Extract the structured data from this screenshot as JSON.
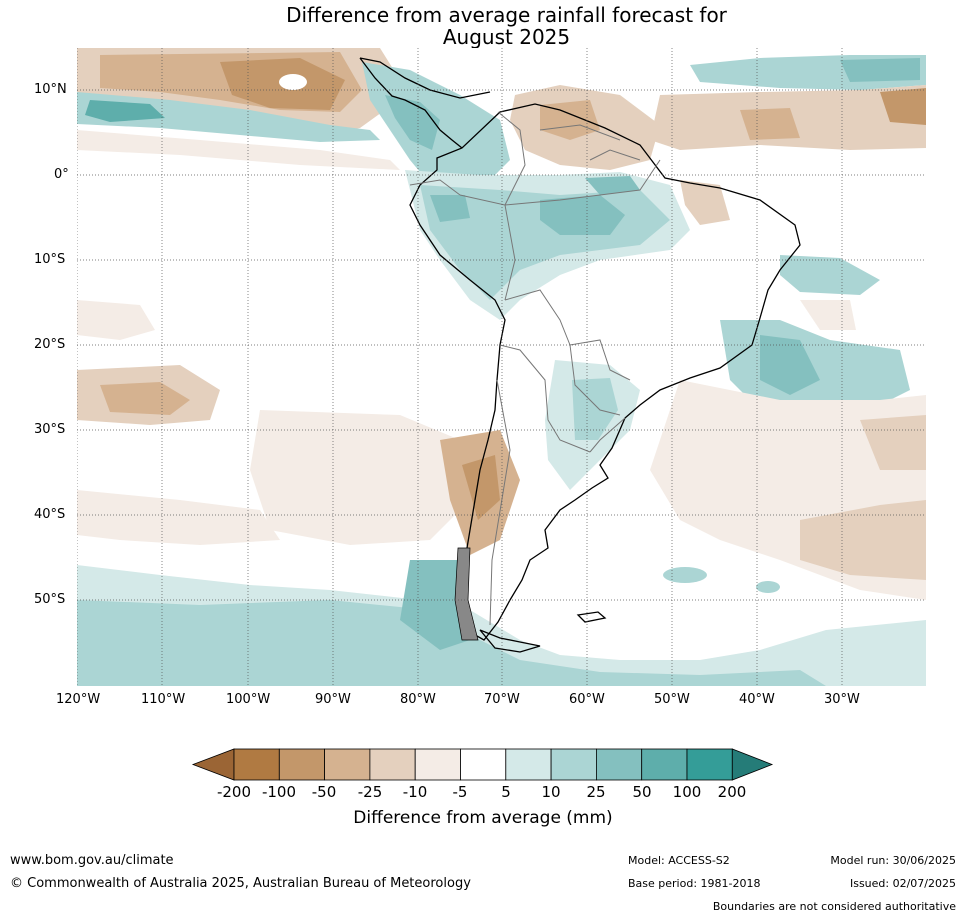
{
  "title": {
    "line1": "Difference from average rainfall forecast for",
    "line2": "August 2025"
  },
  "latitude_labels": [
    "10°N",
    "0°",
    "10°S",
    "20°S",
    "30°S",
    "40°S",
    "50°S"
  ],
  "longitude_labels": [
    "120°W",
    "110°W",
    "100°W",
    "90°W",
    "80°W",
    "70°W",
    "60°W",
    "50°W",
    "40°W",
    "30°W"
  ],
  "legend": {
    "title": "Difference from average (mm)",
    "ticks": [
      "-200",
      "-100",
      "-50",
      "-25",
      "-10",
      "-5",
      "5",
      "10",
      "25",
      "50",
      "100",
      "200"
    ],
    "colors": [
      "#9b6535",
      "#b07a42",
      "#c3976a",
      "#d5b290",
      "#e4d0be",
      "#f4ece6",
      "#ffffff",
      "#d4e9e8",
      "#abd5d4",
      "#84c0bf",
      "#5eaeab",
      "#349d98",
      "#257c78"
    ]
  },
  "footer": {
    "website": "www.bom.gov.au/climate",
    "copyright": "© Commonwealth of Australia 2025, Australian Bureau of Meteorology",
    "model": "Model: ACCESS-S2",
    "base_period": "Base period: 1981-2018",
    "model_run": "Model run: 30/06/2025",
    "issued": "Issued: 02/07/2025",
    "boundaries_note": "Boundaries are not considered authoritative"
  }
}
